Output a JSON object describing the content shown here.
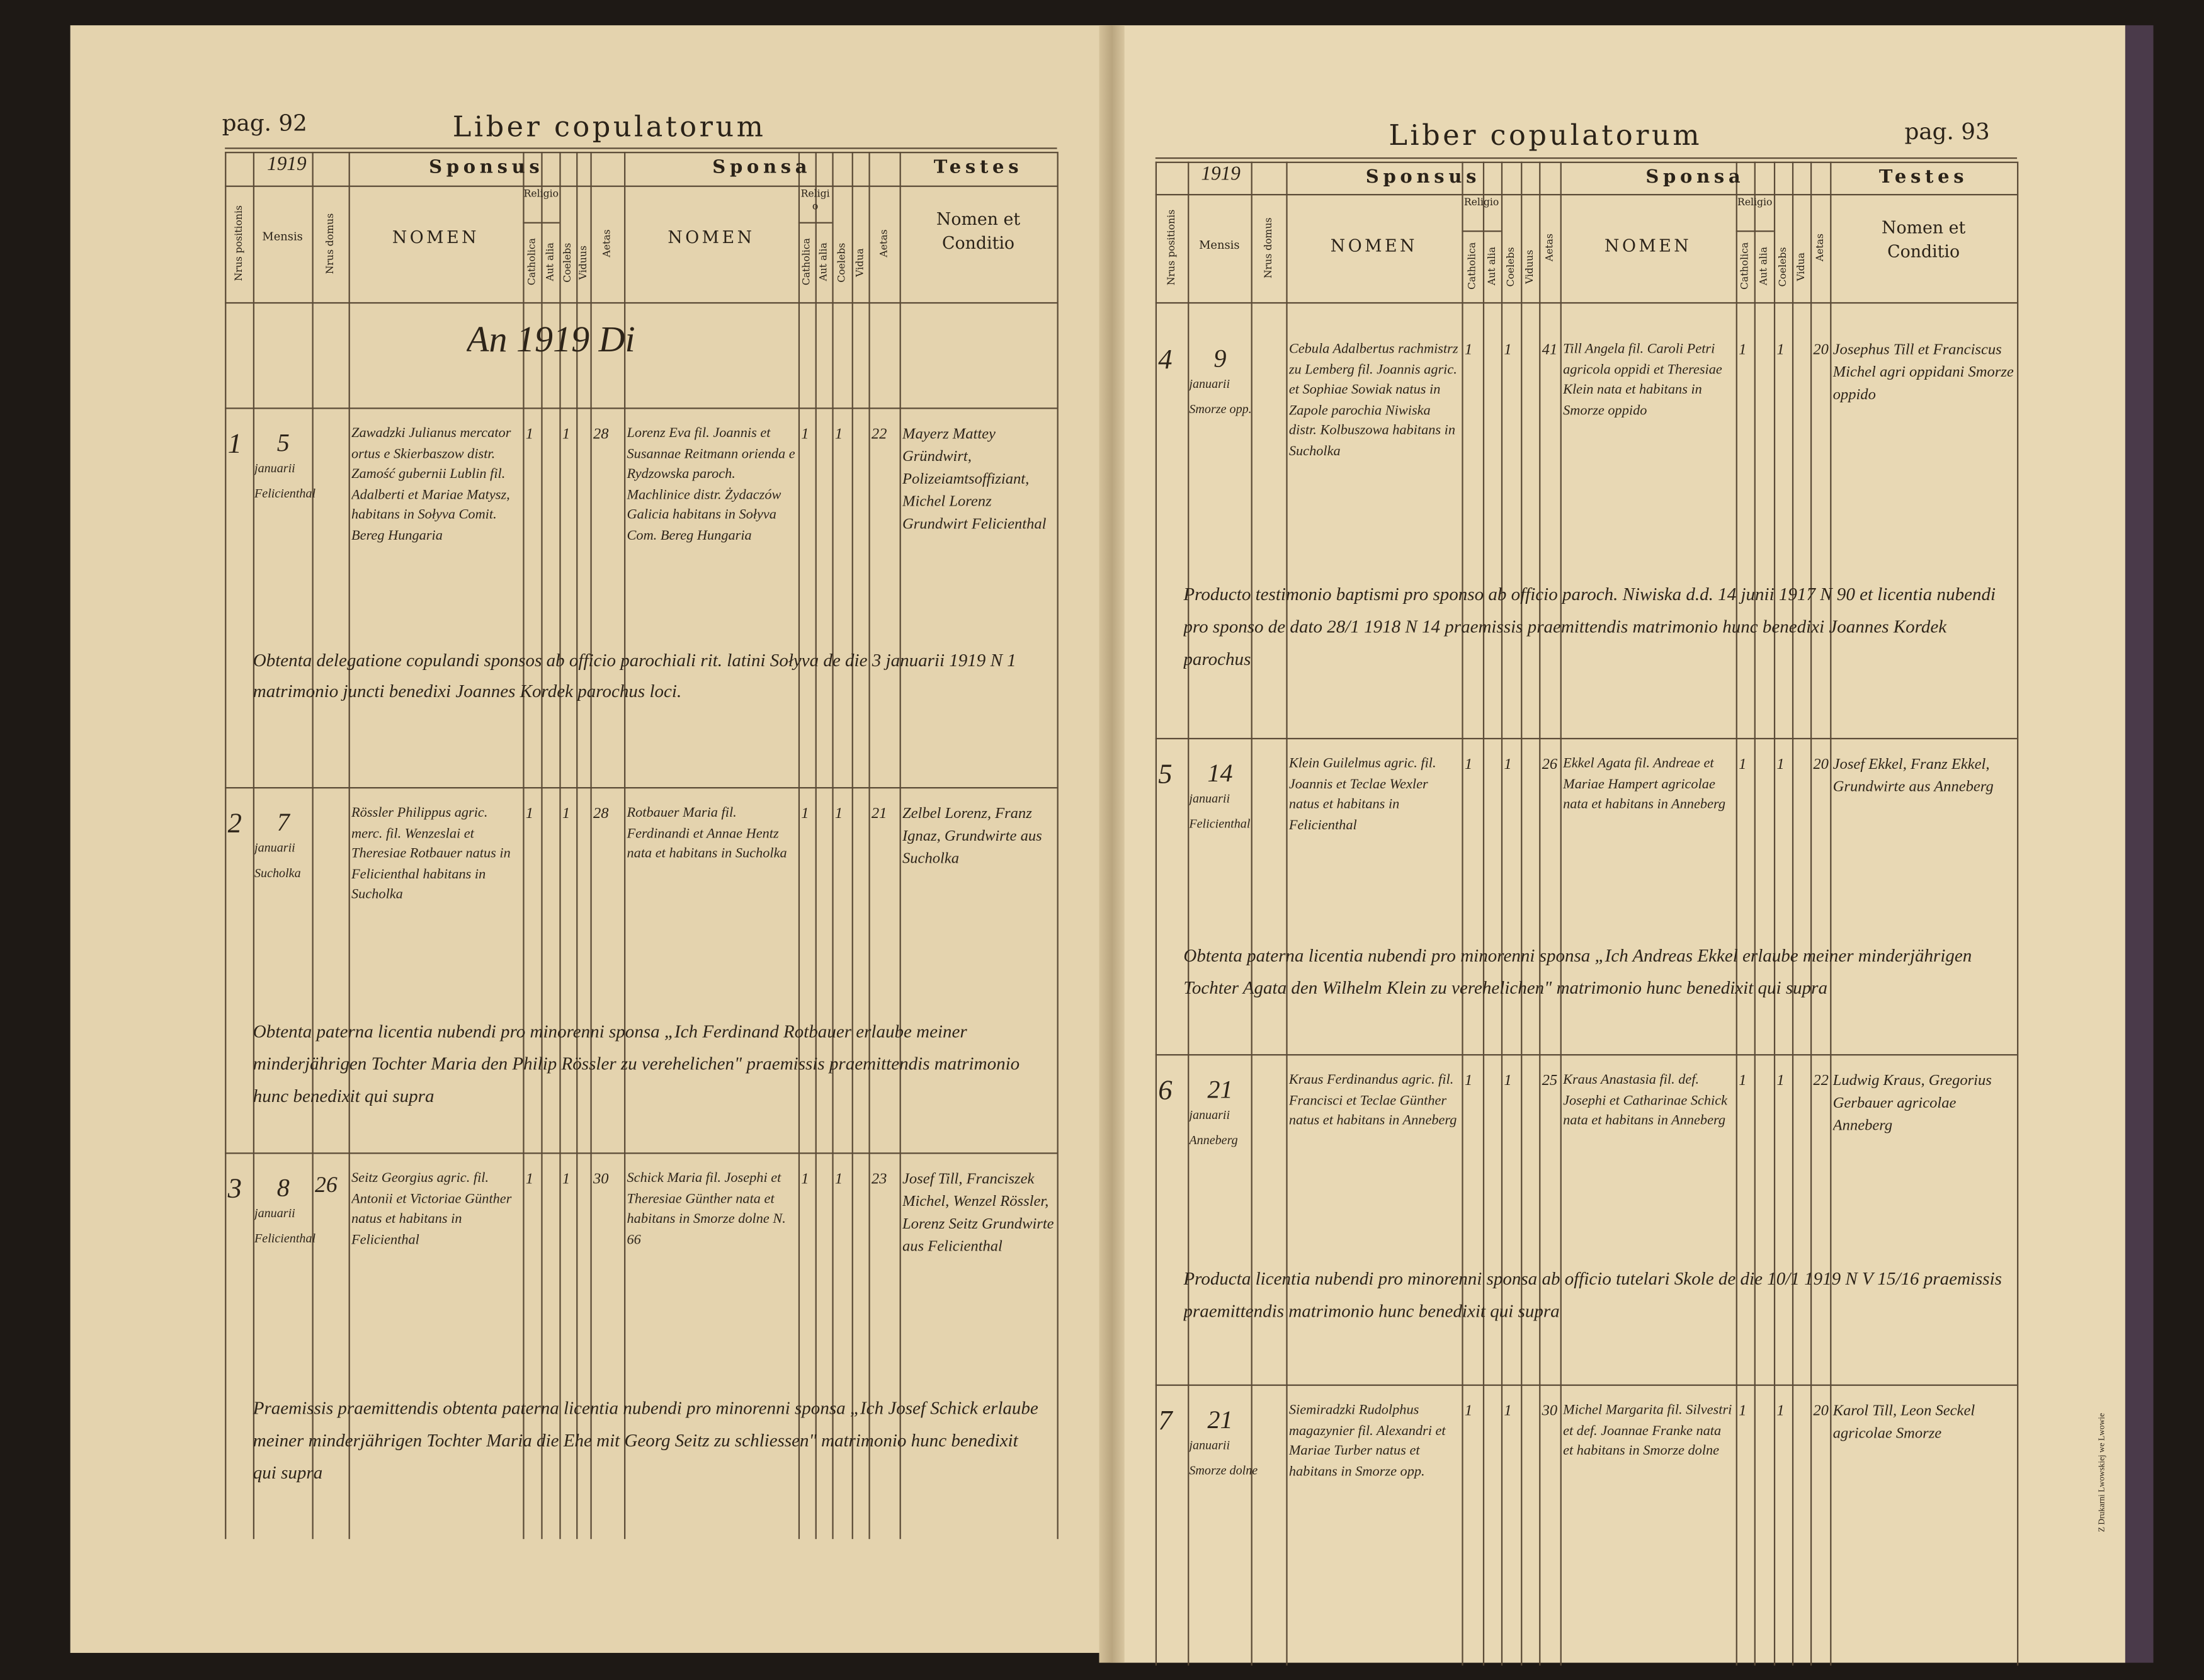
{
  "header": {
    "sponsus": "Sponsus",
    "sponsa": "Sponsa",
    "testes": "Testes",
    "nrus_positionis": "Nrus positionis",
    "mensis": "Mensis",
    "nrus_domus": "Nrus domus",
    "nomen": "NOMEN",
    "religio": "Religio",
    "catholica": "Catholica",
    "aut_alia": "Aut alia",
    "coelebs": "Coelebs",
    "viduus": "Viduus",
    "vidua": "Vidua",
    "aetas": "Aetas",
    "testes_nomen": "Nomen et Conditio"
  },
  "pages": [
    {
      "page_label": "pag. 92",
      "title": "Liber copulatorum",
      "year": "1919",
      "heading_line": "An 1919 Di",
      "entries": [
        {
          "no": "1",
          "day": "5",
          "month": "januarii",
          "place": "Felicienthal",
          "domus": null,
          "sponsus": "Zawadzki Julianus mercator ortus e Skierbaszow distr. Zamość gubernii Lublin fil. Adalberti et Mariae Matysz, habitans in Sołyva Comit. Bereg Hungaria",
          "sponsus_catholica": "1",
          "sponsus_coelebs": "1",
          "sponsus_aetas": "28",
          "sponsa": "Lorenz Eva fil. Joannis et Susannae Reitmann orienda e Rydzowska paroch. Machlinice distr. Żydaczów Galicia habitans in Sołyva Com. Bereg Hungaria",
          "sponsa_catholica": "1",
          "sponsa_coelebs": "1",
          "sponsa_aetas": "22",
          "testes": "Mayerz Mattey Gründwirt, Polizeiamtsoffiziant, Michel Lorenz Grundwirt Felicienthal",
          "note": "Obtenta delegatione copulandi sponsos ab officio parochiali rit. latini Sołyva de die 3 januarii 1919 N 1 matrimonio juncti benedixi Joannes Kordek parochus loci."
        },
        {
          "no": "2",
          "day": "7",
          "month": "januarii",
          "place": "Sucholka",
          "domus": null,
          "sponsus": "Rössler Philippus agric. merc. fil. Wenzeslai et Theresiae Rotbauer natus in Felicienthal habitans in Sucholka",
          "sponsus_catholica": "1",
          "sponsus_coelebs": "1",
          "sponsus_aetas": "28",
          "sponsa": "Rotbauer Maria fil. Ferdinandi et Annae Hentz nata et habitans in Sucholka",
          "sponsa_catholica": "1",
          "sponsa_coelebs": "1",
          "sponsa_aetas": "21",
          "testes": "Zelbel Lorenz, Franz Ignaz, Grundwirte aus Sucholka",
          "note": "Obtenta paterna licentia nubendi pro minorenni sponsa „Ich Ferdinand Rotbauer erlaube meiner minderjährigen Tochter Maria den Philip Rössler zu verehelichen\" praemissis praemittendis matrimonio hunc benedixit qui supra"
        },
        {
          "no": "3",
          "day": "8",
          "month": "januarii",
          "place": "Felicienthal",
          "domus": "26",
          "sponsus": "Seitz Georgius agric. fil. Antonii et Victoriae Günther natus et habitans in Felicienthal",
          "sponsus_catholica": "1",
          "sponsus_coelebs": "1",
          "sponsus_aetas": "30",
          "sponsa": "Schick Maria fil. Josephi et Theresiae Günther nata et habitans in Smorze dolne N. 66",
          "sponsa_catholica": "1",
          "sponsa_coelebs": "1",
          "sponsa_aetas": "23",
          "testes": "Josef Till, Franciszek Michel, Wenzel Rössler, Lorenz Seitz Grundwirte aus Felicienthal",
          "note": "Praemissis praemittendis obtenta paterna licentia nubendi pro minorenni sponsa „Ich Josef Schick erlaube meiner minderjährigen Tochter Maria die Ehe mit Georg Seitz zu schliessen\" matrimonio hunc benedixit qui supra"
        }
      ]
    },
    {
      "page_label": "pag. 93",
      "title": "Liber copulatorum",
      "year": "1919",
      "heading_line": null,
      "entries": [
        {
          "no": "4",
          "day": "9",
          "month": "januarii",
          "place": "Smorze opp.",
          "domus": null,
          "sponsus": "Cebula Adalbertus rachmistrz zu Lemberg fil. Joannis agric. et Sophiae Sowiak natus in Zapole parochia Niwiska distr. Kolbuszowa habitans in Sucholka",
          "sponsus_catholica": "1",
          "sponsus_coelebs": "1",
          "sponsus_aetas": "41",
          "sponsa": "Till Angela fil. Caroli Petri agricola oppidi et Theresiae Klein nata et habitans in Smorze oppido",
          "sponsa_catholica": "1",
          "sponsa_coelebs": "1",
          "sponsa_aetas": "20",
          "testes": "Josephus Till et Franciscus Michel agri oppidani Smorze oppido",
          "note": "Producto testimonio baptismi pro sponso ab officio paroch. Niwiska d.d. 14 junii 1917 N 90 et licentia nubendi pro sponso de dato 28/1 1918 N 14 praemissis praemittendis matrimonio hunc benedixi Joannes Kordek parochus"
        },
        {
          "no": "5",
          "day": "14",
          "month": "januarii",
          "place": "Felicienthal",
          "domus": null,
          "sponsus": "Klein Guilelmus agric. fil. Joannis et Teclae Wexler natus et habitans in Felicienthal",
          "sponsus_catholica": "1",
          "sponsus_coelebs": "1",
          "sponsus_aetas": "26",
          "sponsa": "Ekkel Agata fil. Andreae et Mariae Hampert agricolae nata et habitans in Anneberg",
          "sponsa_catholica": "1",
          "sponsa_coelebs": "1",
          "sponsa_aetas": "20",
          "testes": "Josef Ekkel, Franz Ekkel, Grundwirte aus Anneberg",
          "note": "Obtenta paterna licentia nubendi pro minorenni sponsa „Ich Andreas Ekkel erlaube meiner minderjährigen Tochter Agata den Wilhelm Klein zu verehelichen\" matrimonio hunc benedixit qui supra"
        },
        {
          "no": "6",
          "day": "21",
          "month": "januarii",
          "place": "Anneberg",
          "domus": null,
          "sponsus": "Kraus Ferdinandus agric. fil. Francisci et Teclae Günther natus et habitans in Anneberg",
          "sponsus_catholica": "1",
          "sponsus_coelebs": "1",
          "sponsus_aetas": "25",
          "sponsa": "Kraus Anastasia fil. def. Josephi et Catharinae Schick nata et habitans in Anneberg",
          "sponsa_catholica": "1",
          "sponsa_coelebs": "1",
          "sponsa_aetas": "22",
          "testes": "Ludwig Kraus, Gregorius Gerbauer agricolae Anneberg",
          "note": "Producta licentia nubendi pro minorenni sponsa ab officio tutelari Skole de die 10/1 1919 N V 15/16 praemissis praemittendis matrimonio hunc benedixit qui supra"
        },
        {
          "no": "7",
          "day": "21",
          "month": "januarii",
          "place": "Smorze dolne",
          "domus": null,
          "sponsus": "Siemiradzki Rudolphus magazynier fil. Alexandri et Mariae Turber natus et habitans in Smorze opp.",
          "sponsus_catholica": "1",
          "sponsus_coelebs": "1",
          "sponsus_aetas": "30",
          "sponsa": "Michel Margarita fil. Silvestri et def. Joannae Franke nata et habitans in Smorze dolne",
          "sponsa_catholica": "1",
          "sponsa_coelebs": "1",
          "sponsa_aetas": "20",
          "testes": "Karol Till, Leon Seckel agricolae Smorze",
          "note": null
        }
      ]
    }
  ],
  "printer": "Z Drukarni Lwowskiej we Lwowie"
}
